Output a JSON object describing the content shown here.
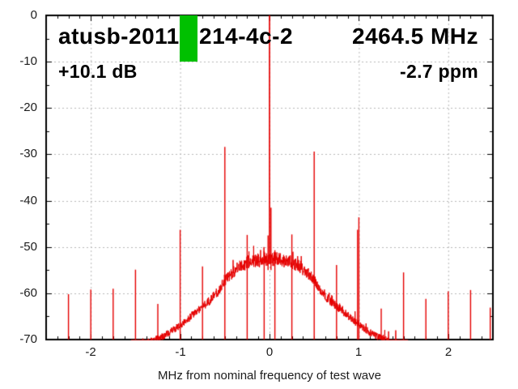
{
  "header": {
    "device_id_left": "atusb-2011",
    "device_id_right": "214-4c-2",
    "center_frequency": "2464.5 MHz",
    "gain": "+10.1 dB",
    "frequency_offset": "-2.7 ppm"
  },
  "colors": {
    "trace": "#e60000",
    "marker_green": "#00c000",
    "grid": "#b8b8b8",
    "axis": "#000000",
    "tick_label": "#1c1c1c"
  },
  "chart_data": {
    "type": "line",
    "title": "atusb-2011 [marker] 214-4c-2",
    "xlabel": "MHz from nominal frequency of test wave",
    "ylabel": "",
    "xlim": [
      -2.5,
      2.5
    ],
    "ylim": [
      -70,
      0
    ],
    "x_ticks": [
      -2,
      -1,
      0,
      1,
      2
    ],
    "y_ticks": [
      0,
      -10,
      -20,
      -30,
      -40,
      -50,
      -60,
      -70
    ],
    "x_minor_step": 0.125,
    "y_minor_step": 5,
    "grid": true,
    "legend": "none",
    "main_carrier": {
      "f": 0,
      "db": 0,
      "pedestal_db": -41.5,
      "shoulder_db": -47.5
    },
    "spurs": [
      {
        "f": -2.25,
        "db": -60.2
      },
      {
        "f": -2.0,
        "db": -59.2
      },
      {
        "f": -1.75,
        "db": -59.0
      },
      {
        "f": -1.5,
        "db": -54.9
      },
      {
        "f": -1.25,
        "db": -62.3
      },
      {
        "f": -1.0,
        "db": -46.3
      },
      {
        "f": -0.75,
        "db": -54.2
      },
      {
        "f": -0.5,
        "db": -28.4
      },
      {
        "f": -0.25,
        "db": -47.4
      },
      {
        "f": -0.06,
        "db": -50.9
      },
      {
        "f": 0.06,
        "db": -50.7
      },
      {
        "f": 0.25,
        "db": -47.3
      },
      {
        "f": 0.5,
        "db": -29.4
      },
      {
        "f": 0.75,
        "db": -53.9
      },
      {
        "f": 0.985,
        "db": -46.3
      },
      {
        "f": 1.0,
        "db": -43.6
      },
      {
        "f": 1.25,
        "db": -63.3
      },
      {
        "f": 1.5,
        "db": -55.5
      },
      {
        "f": 1.75,
        "db": -61.2
      },
      {
        "f": 2.0,
        "db": -59.6
      },
      {
        "f": 2.25,
        "db": -59.3
      },
      {
        "f": 2.47,
        "db": -63.1
      }
    ],
    "noise_floor": [
      [
        -1.55,
        -72
      ],
      [
        -1.45,
        -71.3
      ],
      [
        -1.35,
        -70.5
      ],
      [
        -1.25,
        -69.8
      ],
      [
        -1.15,
        -68.9
      ],
      [
        -1.05,
        -67.6
      ],
      [
        -0.95,
        -66.2
      ],
      [
        -0.85,
        -64.5
      ],
      [
        -0.8,
        -63.6
      ],
      [
        -0.75,
        -62.9
      ],
      [
        -0.7,
        -62.1
      ],
      [
        -0.65,
        -61.2
      ],
      [
        -0.6,
        -60.2
      ],
      [
        -0.55,
        -58.8
      ],
      [
        -0.5,
        -57.3
      ],
      [
        -0.45,
        -56.2
      ],
      [
        -0.4,
        -55.3
      ],
      [
        -0.35,
        -54.5
      ],
      [
        -0.3,
        -53.9
      ],
      [
        -0.25,
        -53.4
      ],
      [
        -0.2,
        -53.1
      ],
      [
        -0.15,
        -52.9
      ],
      [
        -0.1,
        -52.8
      ],
      [
        -0.05,
        -52.7
      ],
      [
        0,
        -52.5
      ],
      [
        0.05,
        -52.6
      ],
      [
        0.1,
        -52.7
      ],
      [
        0.15,
        -52.8
      ],
      [
        0.2,
        -53.0
      ],
      [
        0.25,
        -53.3
      ],
      [
        0.3,
        -53.8
      ],
      [
        0.35,
        -54.4
      ],
      [
        0.4,
        -55.2
      ],
      [
        0.45,
        -56.1
      ],
      [
        0.5,
        -57.2
      ],
      [
        0.55,
        -58.7
      ],
      [
        0.6,
        -60.1
      ],
      [
        0.65,
        -61.1
      ],
      [
        0.7,
        -62.0
      ],
      [
        0.75,
        -62.8
      ],
      [
        0.8,
        -63.5
      ],
      [
        0.85,
        -64.4
      ],
      [
        0.95,
        -66.1
      ],
      [
        1.05,
        -67.5
      ],
      [
        1.15,
        -68.8
      ],
      [
        1.25,
        -69.7
      ],
      [
        1.35,
        -70.4
      ],
      [
        1.45,
        -71.2
      ],
      [
        1.55,
        -72
      ]
    ],
    "limit_marker": {
      "f_min": -1.007,
      "f_max": -0.811,
      "db_max": 0,
      "db_min": -10,
      "color": "#00c000"
    }
  }
}
